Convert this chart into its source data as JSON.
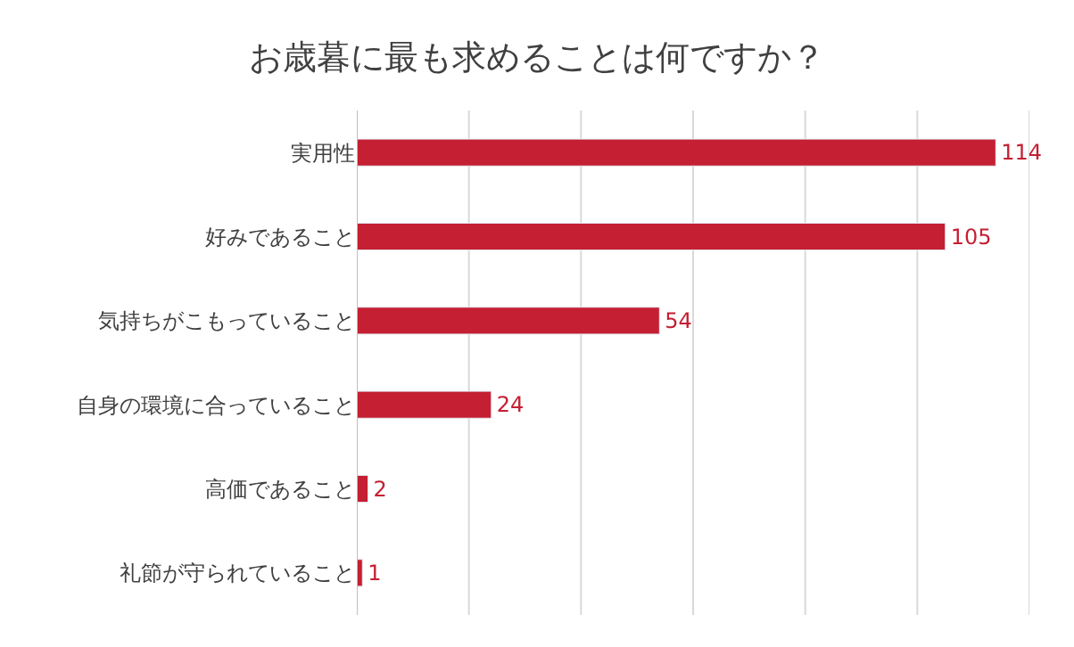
{
  "chart_data": {
    "type": "bar",
    "orientation": "horizontal",
    "title": "お歳暮に最も求めることは何ですか？",
    "categories": [
      "実用性",
      "好みであること",
      "気持ちがこもっていること",
      "自身の環境に合っていること",
      "高価であること",
      "礼節が守られていること"
    ],
    "values": [
      114,
      105,
      54,
      24,
      2,
      1
    ],
    "color": "#c41f32",
    "data_labels": true,
    "xlim": [
      0,
      120
    ],
    "xticks": [
      {
        "value": 0,
        "label": null
      },
      {
        "value": 20,
        "label": null
      },
      {
        "value": 40,
        "label": null
      },
      {
        "value": 60,
        "label": null
      },
      {
        "value": 80,
        "label": null
      },
      {
        "value": 100,
        "label": null
      },
      {
        "value": 120,
        "label": null
      }
    ],
    "grid": "x",
    "tick_labels": "y",
    "legend": false
  }
}
